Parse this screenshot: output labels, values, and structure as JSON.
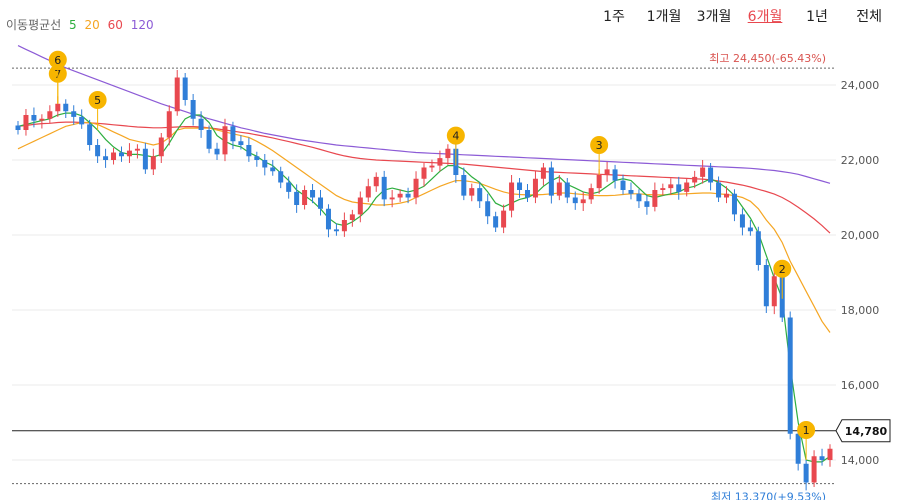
{
  "legend": {
    "title": "이동평균선",
    "ma": [
      {
        "label": "5",
        "color": "#2eae3f"
      },
      {
        "label": "20",
        "color": "#f5a623"
      },
      {
        "label": "60",
        "color": "#e8484f"
      },
      {
        "label": "120",
        "color": "#8c5bd6"
      }
    ]
  },
  "periods": [
    {
      "label": "1주",
      "active": false
    },
    {
      "label": "1개월",
      "active": false
    },
    {
      "label": "3개월",
      "active": false
    },
    {
      "label": "6개월",
      "active": true
    },
    {
      "label": "1년",
      "active": false
    },
    {
      "label": "전체",
      "active": false
    }
  ],
  "colors": {
    "up": "#e8484f",
    "down": "#2f7ed8",
    "high_label": "#d9534f",
    "low_label": "#2f7ed8",
    "marker": "#f7b500",
    "active_period": "#e8484f"
  },
  "chart_data": {
    "type": "candlestick",
    "ylim": [
      13200,
      25200
    ],
    "y_ticks": [
      "14,000",
      "16,000",
      "18,000",
      "20,000",
      "22,000",
      "24,000"
    ],
    "high": {
      "value": 24450,
      "label": "최고 24,450(-65.43%)"
    },
    "low": {
      "value": 13370,
      "label": "최저 13,370(+9.53%)"
    },
    "current": {
      "value": 14780,
      "label": "14,780"
    },
    "close": [
      22800,
      23200,
      23050,
      23100,
      23300,
      23500,
      23300,
      23150,
      22950,
      22400,
      22100,
      22000,
      22200,
      22100,
      22250,
      22300,
      21750,
      22100,
      22600,
      23300,
      24200,
      23600,
      23100,
      22800,
      22300,
      22150,
      22900,
      22500,
      22400,
      22100,
      22000,
      21800,
      21700,
      21400,
      21150,
      20800,
      21200,
      21000,
      20700,
      20150,
      20100,
      20400,
      20550,
      21000,
      21300,
      21550,
      20950,
      21000,
      21100,
      21000,
      21500,
      21800,
      21850,
      22050,
      22300,
      21600,
      21050,
      21250,
      20900,
      20500,
      20200,
      20650,
      21400,
      21200,
      21000,
      21500,
      21800,
      21050,
      21400,
      21000,
      20850,
      20950,
      21250,
      21600,
      21750,
      21450,
      21200,
      21100,
      20900,
      20750,
      21200,
      21250,
      21350,
      21150,
      21400,
      21550,
      21800,
      21400,
      21000,
      21100,
      20550,
      20200,
      20100,
      19200,
      18100,
      18900,
      17800,
      14700,
      13900,
      13400,
      14100,
      14000,
      14300
    ],
    "ma5": [
      22900,
      22950,
      23000,
      23050,
      23100,
      23200,
      23250,
      23250,
      23180,
      23000,
      22800,
      22550,
      22350,
      22200,
      22150,
      22150,
      22120,
      22080,
      22150,
      22450,
      22800,
      23100,
      23200,
      23200,
      23000,
      22650,
      22500,
      22400,
      22350,
      22200,
      22100,
      21950,
      21850,
      21650,
      21450,
      21200,
      21050,
      20900,
      20700,
      20450,
      20300,
      20250,
      20350,
      20500,
      20700,
      21000,
      21200,
      21250,
      21200,
      21150,
      21200,
      21300,
      21500,
      21700,
      21850,
      21850,
      21750,
      21550,
      21400,
      21150,
      20850,
      20750,
      20850,
      20950,
      21000,
      21100,
      21300,
      21450,
      21550,
      21350,
      21250,
      21150,
      21100,
      21150,
      21300,
      21450,
      21500,
      21450,
      21250,
      21050,
      21000,
      21050,
      21100,
      21150,
      21250,
      21300,
      21400,
      21500,
      21400,
      21250,
      21050,
      20750,
      20450,
      20050,
      19450,
      18850,
      18300,
      16500,
      15000,
      14000,
      13950,
      13950,
      14100
    ],
    "ma20": [
      22300,
      22400,
      22500,
      22600,
      22700,
      22800,
      22900,
      22950,
      23000,
      23000,
      22950,
      22850,
      22750,
      22650,
      22550,
      22500,
      22450,
      22400,
      22450,
      22600,
      22800,
      22850,
      22850,
      22850,
      22850,
      22800,
      22750,
      22700,
      22650,
      22600,
      22500,
      22380,
      22250,
      22100,
      21950,
      21800,
      21650,
      21500,
      21350,
      21200,
      21050,
      20950,
      20880,
      20850,
      20830,
      20800,
      20800,
      20820,
      20850,
      20900,
      21000,
      21100,
      21200,
      21300,
      21380,
      21450,
      21450,
      21420,
      21380,
      21300,
      21220,
      21150,
      21100,
      21080,
      21070,
      21070,
      21080,
      21100,
      21120,
      21120,
      21100,
      21080,
      21060,
      21050,
      21050,
      21060,
      21080,
      21100,
      21100,
      21080,
      21070,
      21070,
      21080,
      21090,
      21100,
      21110,
      21120,
      21120,
      21100,
      21080,
      21050,
      21000,
      20900,
      20700,
      20400,
      20150,
      19800,
      19300,
      18900,
      18500,
      18100,
      17700,
      17400
    ],
    "ma60": [
      22900,
      22920,
      22950,
      22970,
      22980,
      23000,
      23010,
      23010,
      23000,
      22990,
      22980,
      22960,
      22940,
      22920,
      22900,
      22880,
      22870,
      22860,
      22860,
      22870,
      22880,
      22890,
      22890,
      22880,
      22860,
      22830,
      22800,
      22770,
      22740,
      22710,
      22670,
      22630,
      22590,
      22540,
      22490,
      22440,
      22390,
      22340,
      22280,
      22220,
      22160,
      22110,
      22070,
      22040,
      22020,
      22000,
      21990,
      21980,
      21970,
      21960,
      21950,
      21940,
      21930,
      21920,
      21910,
      21900,
      21890,
      21870,
      21850,
      21830,
      21810,
      21790,
      21770,
      21750,
      21730,
      21710,
      21690,
      21680,
      21670,
      21660,
      21650,
      21640,
      21630,
      21620,
      21610,
      21600,
      21590,
      21580,
      21570,
      21560,
      21550,
      21540,
      21530,
      21520,
      21510,
      21500,
      21490,
      21470,
      21440,
      21410,
      21370,
      21330,
      21280,
      21220,
      21160,
      21090,
      21000,
      20880,
      20740,
      20590,
      20430,
      20250,
      20050
    ],
    "ma120": [
      25050,
      24950,
      24850,
      24750,
      24650,
      24550,
      24460,
      24380,
      24300,
      24220,
      24140,
      24060,
      23980,
      23900,
      23820,
      23740,
      23660,
      23580,
      23500,
      23430,
      23360,
      23290,
      23220,
      23160,
      23100,
      23040,
      22980,
      22920,
      22860,
      22810,
      22760,
      22710,
      22670,
      22630,
      22590,
      22550,
      22520,
      22490,
      22460,
      22430,
      22400,
      22380,
      22360,
      22340,
      22320,
      22300,
      22280,
      22260,
      22240,
      22220,
      22200,
      22190,
      22180,
      22170,
      22160,
      22150,
      22140,
      22130,
      22120,
      22110,
      22100,
      22090,
      22080,
      22070,
      22060,
      22050,
      22040,
      22030,
      22020,
      22010,
      22000,
      21990,
      21980,
      21970,
      21960,
      21950,
      21940,
      21930,
      21920,
      21910,
      21900,
      21890,
      21880,
      21870,
      21860,
      21850,
      21840,
      21830,
      21820,
      21810,
      21800,
      21790,
      21780,
      21760,
      21740,
      21720,
      21690,
      21660,
      21620,
      21560,
      21500,
      21440,
      21380
    ],
    "markers": [
      {
        "label": "7",
        "index": 5
      },
      {
        "label": "6",
        "index": 5
      },
      {
        "label": "5",
        "index": 10
      },
      {
        "label": "4",
        "index": 55
      },
      {
        "label": "3",
        "index": 73
      },
      {
        "label": "2",
        "index": 96
      },
      {
        "label": "1",
        "index": 99
      }
    ]
  }
}
